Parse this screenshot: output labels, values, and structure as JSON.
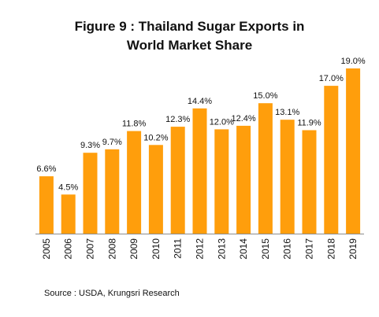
{
  "title_line1": "Figure 9 : Thailand Sugar Exports in",
  "title_line2": "World Market Share",
  "source": "Source : USDA, Krungsri Research",
  "colors": {
    "bar": "#FF9E0C",
    "axis": "#8C8C8C",
    "text": "#111111"
  },
  "chart_data": {
    "type": "bar",
    "title": "Figure 9 : Thailand Sugar Exports in World Market Share",
    "categories": [
      "2005",
      "2006",
      "2007",
      "2008",
      "2009",
      "2010",
      "2011",
      "2012",
      "2013",
      "2014",
      "2015",
      "2016",
      "2017",
      "2018",
      "2019"
    ],
    "values": [
      6.6,
      4.5,
      9.3,
      9.7,
      11.8,
      10.2,
      12.3,
      14.4,
      12.0,
      12.4,
      15.0,
      13.1,
      11.9,
      17.0,
      19.0
    ],
    "data_labels": [
      "6.6%",
      "4.5%",
      "9.3%",
      "9.7%",
      "11.8%",
      "10.2%",
      "12.3%",
      "14.4%",
      "12.0%",
      "12.4%",
      "15.0%",
      "13.1%",
      "11.9%",
      "17.0%",
      "19.0%"
    ],
    "ylim": [
      0,
      19.0
    ],
    "x_tick_rotation": "vertical",
    "grid": false,
    "legend": "none"
  }
}
